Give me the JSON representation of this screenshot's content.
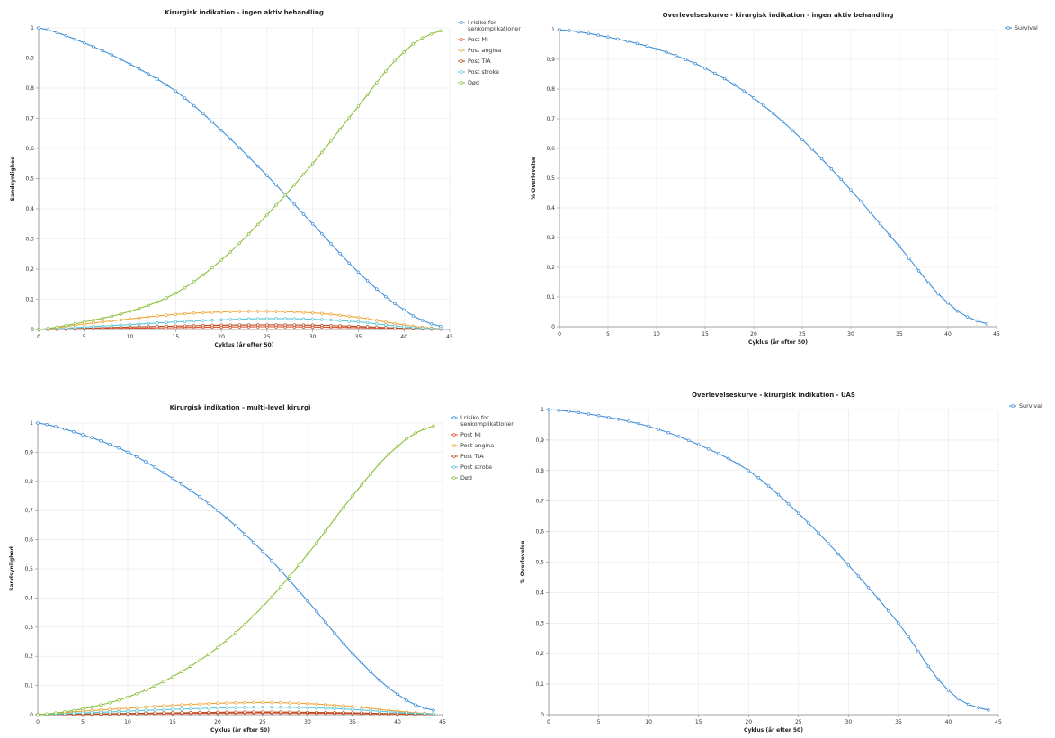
{
  "colors": {
    "risk": "#3f8fd8",
    "mi": "#e04c2c",
    "angina": "#f0a53a",
    "tia": "#b84a1e",
    "stroke": "#5ec8d8",
    "death": "#8bbf3a",
    "survival": "#3f8fd8",
    "grid": "#e6e6e6",
    "axis": "#888888"
  },
  "chart_data": [
    {
      "type": "line",
      "title": "Kirurgisk indikation - ingen aktiv behandling",
      "xlabel": "Cyklus (år efter 50)",
      "ylabel": "Sandsynlighed",
      "xlim": [
        0,
        45
      ],
      "ylim": [
        0,
        1
      ],
      "xticks": [
        "0",
        "5",
        "10",
        "15",
        "20",
        "25",
        "30",
        "35",
        "40",
        "45"
      ],
      "yticks": [
        "0",
        "0,1",
        "0,2",
        "0,3",
        "0,4",
        "0,5",
        "0,6",
        "0,7",
        "0,8",
        "0,9",
        "1"
      ],
      "grid": true,
      "legend_position": "right",
      "x": [
        0,
        5,
        10,
        15,
        20,
        25,
        30,
        35,
        40,
        44
      ],
      "series": [
        {
          "name": "I risiko for senkomplikationer",
          "color_key": "risk",
          "values": [
            1.0,
            0.95,
            0.88,
            0.79,
            0.66,
            0.51,
            0.35,
            0.19,
            0.065,
            0.01
          ]
        },
        {
          "name": "Post MI",
          "color_key": "mi",
          "values": [
            0.0,
            0.002,
            0.004,
            0.006,
            0.008,
            0.009,
            0.008,
            0.006,
            0.003,
            0.001
          ]
        },
        {
          "name": "Post angina",
          "color_key": "angina",
          "values": [
            0.0,
            0.018,
            0.035,
            0.05,
            0.058,
            0.06,
            0.055,
            0.04,
            0.015,
            0.003
          ]
        },
        {
          "name": "Post TIA",
          "color_key": "tia",
          "values": [
            0.0,
            0.004,
            0.008,
            0.011,
            0.014,
            0.015,
            0.014,
            0.01,
            0.004,
            0.001
          ]
        },
        {
          "name": "Post stroke",
          "color_key": "stroke",
          "values": [
            0.0,
            0.008,
            0.016,
            0.025,
            0.032,
            0.036,
            0.034,
            0.025,
            0.009,
            0.002
          ]
        },
        {
          "name": "Død",
          "color_key": "death",
          "values": [
            0.0,
            0.025,
            0.06,
            0.12,
            0.23,
            0.38,
            0.55,
            0.74,
            0.92,
            0.99
          ]
        }
      ]
    },
    {
      "type": "line",
      "title": "Overlevelseskurve - kirurgisk indikation - ingen aktiv behandling",
      "xlabel": "Cyklus (år efter 50)",
      "ylabel": "% Overlevelse",
      "xlim": [
        0,
        45
      ],
      "ylim": [
        0,
        1
      ],
      "xticks": [
        "0",
        "5",
        "10",
        "15",
        "20",
        "25",
        "30",
        "35",
        "40",
        "45"
      ],
      "yticks": [
        "0",
        "0,1",
        "0,2",
        "0,3",
        "0,4",
        "0,5",
        "0,6",
        "0,7",
        "0,8",
        "0,9",
        "1"
      ],
      "grid": true,
      "legend_position": "top-right",
      "x": [
        0,
        5,
        10,
        15,
        20,
        25,
        30,
        35,
        40,
        44
      ],
      "series": [
        {
          "name": "Survival",
          "color_key": "survival",
          "values": [
            1.0,
            0.975,
            0.935,
            0.87,
            0.77,
            0.63,
            0.46,
            0.27,
            0.08,
            0.01
          ]
        }
      ]
    },
    {
      "type": "line",
      "title": "Kirurgisk indikation - multi-level kirurgi",
      "xlabel": "Cyklus (år efter 50)",
      "ylabel": "Sandsynlighed",
      "xlim": [
        0,
        45
      ],
      "ylim": [
        0,
        1
      ],
      "xticks": [
        "0",
        "5",
        "10",
        "15",
        "20",
        "25",
        "30",
        "35",
        "40",
        "45"
      ],
      "yticks": [
        "0",
        "0,1",
        "0,2",
        "0,3",
        "0,4",
        "0,5",
        "0,6",
        "0,7",
        "0,8",
        "0,9",
        "1"
      ],
      "grid": true,
      "legend_position": "right",
      "x": [
        0,
        5,
        10,
        15,
        20,
        25,
        30,
        35,
        40,
        44
      ],
      "series": [
        {
          "name": "I risiko for senkomplikationer",
          "color_key": "risk",
          "values": [
            1.0,
            0.96,
            0.9,
            0.81,
            0.7,
            0.56,
            0.39,
            0.21,
            0.07,
            0.015
          ]
        },
        {
          "name": "Post MI",
          "color_key": "mi",
          "values": [
            0.0,
            0.001,
            0.003,
            0.004,
            0.005,
            0.006,
            0.005,
            0.004,
            0.002,
            0.001
          ]
        },
        {
          "name": "Post angina",
          "color_key": "angina",
          "values": [
            0.0,
            0.012,
            0.022,
            0.032,
            0.039,
            0.042,
            0.038,
            0.028,
            0.012,
            0.003
          ]
        },
        {
          "name": "Post TIA",
          "color_key": "tia",
          "values": [
            0.0,
            0.002,
            0.004,
            0.006,
            0.008,
            0.009,
            0.008,
            0.006,
            0.003,
            0.001
          ]
        },
        {
          "name": "Post stroke",
          "color_key": "stroke",
          "values": [
            0.0,
            0.006,
            0.012,
            0.018,
            0.023,
            0.026,
            0.024,
            0.018,
            0.008,
            0.002
          ]
        },
        {
          "name": "Død",
          "color_key": "death",
          "values": [
            0.0,
            0.02,
            0.06,
            0.13,
            0.23,
            0.37,
            0.55,
            0.75,
            0.92,
            0.99
          ]
        }
      ]
    },
    {
      "type": "line",
      "title": "Overlevelseskurve - kirurgisk indikation - UAS",
      "xlabel": "Cyklus (år efter 50)",
      "ylabel": "% Overlevelse",
      "xlim": [
        0,
        45
      ],
      "ylim": [
        0,
        1
      ],
      "xticks": [
        "0",
        "5",
        "10",
        "15",
        "20",
        "25",
        "30",
        "35",
        "40",
        "45"
      ],
      "yticks": [
        "0",
        "0,1",
        "0,2",
        "0,3",
        "0,4",
        "0,5",
        "0,6",
        "0,7",
        "0,8",
        "0,9",
        "1"
      ],
      "grid": true,
      "legend_position": "top-right",
      "x": [
        0,
        5,
        10,
        15,
        20,
        25,
        30,
        35,
        40,
        44
      ],
      "series": [
        {
          "name": "Survival",
          "color_key": "survival",
          "values": [
            1.0,
            0.98,
            0.945,
            0.885,
            0.8,
            0.66,
            0.49,
            0.3,
            0.08,
            0.015
          ]
        }
      ]
    }
  ]
}
